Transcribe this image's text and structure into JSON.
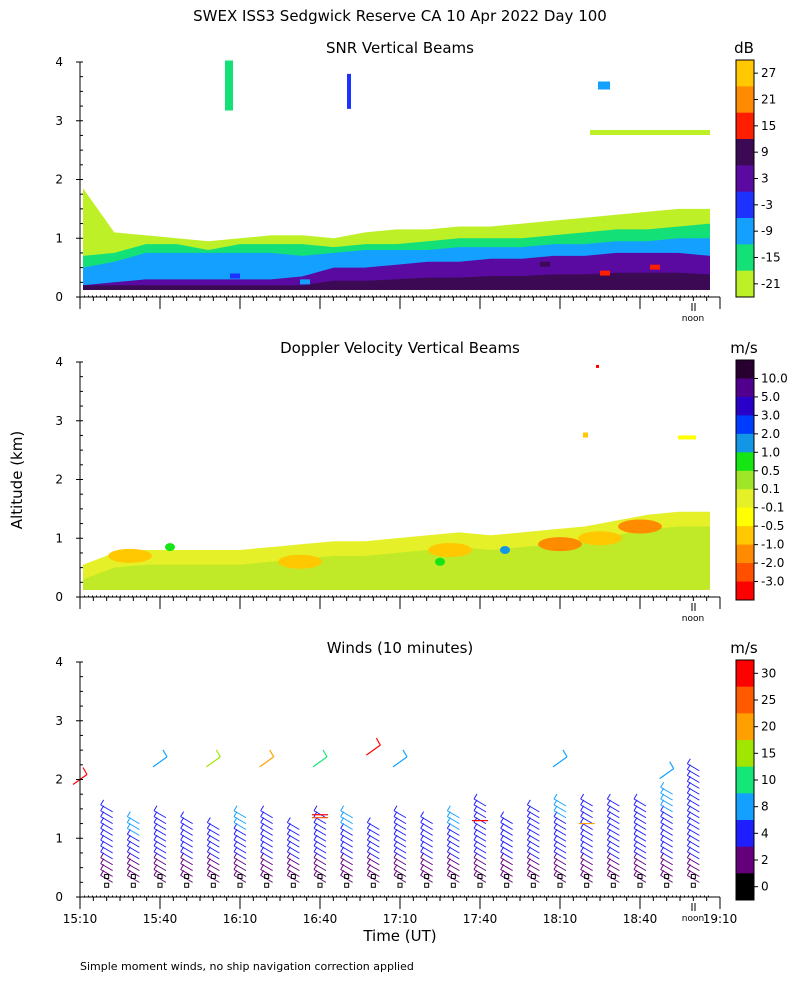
{
  "figure_title": "SWEX ISS3 Sedgwick Reserve CA  10 Apr 2022 Day 100",
  "y_axis_label": "Altitude (km)",
  "x_axis_label": "Time (UT)",
  "noon_label": "noon",
  "footnote": "Simple moment winds, no ship navigation correction applied",
  "chart_data": [
    {
      "type": "heatmap",
      "title": "SNR Vertical Beams",
      "unit_label": "dB",
      "ylim": [
        0,
        4
      ],
      "y_ticks": [
        "0",
        "1",
        "2",
        "3",
        "4"
      ],
      "colorbar": {
        "labels": [
          "27",
          "21",
          "15",
          "9",
          "3",
          "-3",
          "-9",
          "-15",
          "-21"
        ],
        "colors": [
          "#ffc800",
          "#ff8c00",
          "#ff1e00",
          "#3c0a55",
          "#5a0aa0",
          "#1e32ff",
          "#14a0ff",
          "#14e078",
          "#bef028"
        ]
      },
      "layers": [
        {
          "name": "weak",
          "top_km": [
            1.85,
            1.1,
            1.05,
            1.0,
            0.95,
            1.0,
            1.05,
            1.05,
            1.0,
            1.1,
            1.15,
            1.15,
            1.2,
            1.2,
            1.25,
            1.3,
            1.35,
            1.4,
            1.45,
            1.5,
            1.5
          ]
        },
        {
          "name": "low",
          "top_km": [
            0.7,
            0.75,
            0.9,
            0.9,
            0.8,
            0.9,
            0.9,
            0.9,
            0.85,
            0.9,
            0.9,
            0.95,
            1.0,
            1.0,
            1.0,
            1.05,
            1.1,
            1.15,
            1.15,
            1.2,
            1.25
          ]
        },
        {
          "name": "mid",
          "top_km": [
            0.5,
            0.6,
            0.75,
            0.75,
            0.75,
            0.75,
            0.75,
            0.7,
            0.75,
            0.8,
            0.8,
            0.8,
            0.85,
            0.85,
            0.85,
            0.9,
            0.9,
            0.95,
            0.95,
            1.0,
            1.0
          ]
        },
        {
          "name": "strong",
          "top_km": [
            0.2,
            0.25,
            0.3,
            0.3,
            0.3,
            0.3,
            0.3,
            0.35,
            0.5,
            0.5,
            0.55,
            0.6,
            0.6,
            0.65,
            0.65,
            0.7,
            0.7,
            0.75,
            0.75,
            0.75,
            0.7
          ]
        }
      ]
    },
    {
      "type": "heatmap",
      "title": "Doppler Velocity Vertical Beams",
      "unit_label": "m/s",
      "ylim": [
        0,
        4
      ],
      "y_ticks": [
        "0",
        "1",
        "2",
        "3",
        "4"
      ],
      "colorbar": {
        "labels": [
          "10.0",
          "5.0",
          "3.0",
          "2.0",
          "1.0",
          "0.5",
          "0.1",
          "-0.1",
          "-0.5",
          "-1.0",
          "-2.0",
          "-3.0"
        ],
        "colors": [
          "#280030",
          "#50008c",
          "#2800c8",
          "#003cff",
          "#1496e6",
          "#14e614",
          "#a0e628",
          "#e6f028",
          "#ffff00",
          "#ffc800",
          "#ff8c00",
          "#ff5000",
          "#ff0000"
        ]
      },
      "top_km": [
        0.55,
        0.75,
        0.8,
        0.8,
        0.8,
        0.8,
        0.85,
        0.9,
        0.95,
        0.95,
        1.0,
        1.05,
        1.1,
        1.05,
        1.1,
        1.15,
        1.2,
        1.3,
        1.4,
        1.45,
        1.45
      ]
    },
    {
      "type": "scatter",
      "title": "Winds (10 minutes)",
      "unit_label": "m/s",
      "ylim": [
        0,
        4
      ],
      "y_ticks": [
        "0",
        "1",
        "2",
        "3",
        "4"
      ],
      "x_ticks": [
        "15:10",
        "15:40",
        "16:10",
        "16:40",
        "17:10",
        "17:40",
        "18:10",
        "18:40",
        "19:10"
      ],
      "xlim_utc": [
        "15:10",
        "19:10"
      ],
      "colorbar": {
        "labels": [
          "30",
          "25",
          "20",
          "15",
          "10",
          "8",
          "4",
          "2",
          "0"
        ],
        "colors": [
          "#ff0000",
          "#ff5a00",
          "#ffa000",
          "#a0e600",
          "#14e678",
          "#14a0ff",
          "#1e1eff",
          "#64007a",
          "#000000"
        ]
      },
      "profile_times_utc": [
        "15:20",
        "15:30",
        "15:40",
        "15:50",
        "16:00",
        "16:10",
        "16:20",
        "16:30",
        "16:40",
        "16:50",
        "17:00",
        "17:10",
        "17:20",
        "17:30",
        "17:40",
        "17:50",
        "18:00",
        "18:10",
        "18:20",
        "18:30",
        "18:40",
        "18:50",
        "19:00"
      ],
      "profile_top_km": [
        1.5,
        1.3,
        1.4,
        1.3,
        1.2,
        1.4,
        1.4,
        1.2,
        1.4,
        1.4,
        1.2,
        1.4,
        1.3,
        1.4,
        1.6,
        1.3,
        1.5,
        1.6,
        1.6,
        1.6,
        1.6,
        1.8,
        2.2
      ],
      "upper_barbs": [
        {
          "time_utc": "15:10",
          "km": 2.0,
          "speed_ms": 30
        },
        {
          "time_utc": "15:40",
          "km": 2.3,
          "speed_ms": 8
        },
        {
          "time_utc": "16:00",
          "km": 2.3,
          "speed_ms": 15
        },
        {
          "time_utc": "16:20",
          "km": 2.3,
          "speed_ms": 20
        },
        {
          "time_utc": "16:40",
          "km": 2.3,
          "speed_ms": 10
        },
        {
          "time_utc": "17:00",
          "km": 2.5,
          "speed_ms": 30
        },
        {
          "time_utc": "17:10",
          "km": 2.3,
          "speed_ms": 8
        },
        {
          "time_utc": "18:10",
          "km": 2.3,
          "speed_ms": 8
        },
        {
          "time_utc": "18:50",
          "km": 2.1,
          "speed_ms": 8
        }
      ]
    }
  ]
}
